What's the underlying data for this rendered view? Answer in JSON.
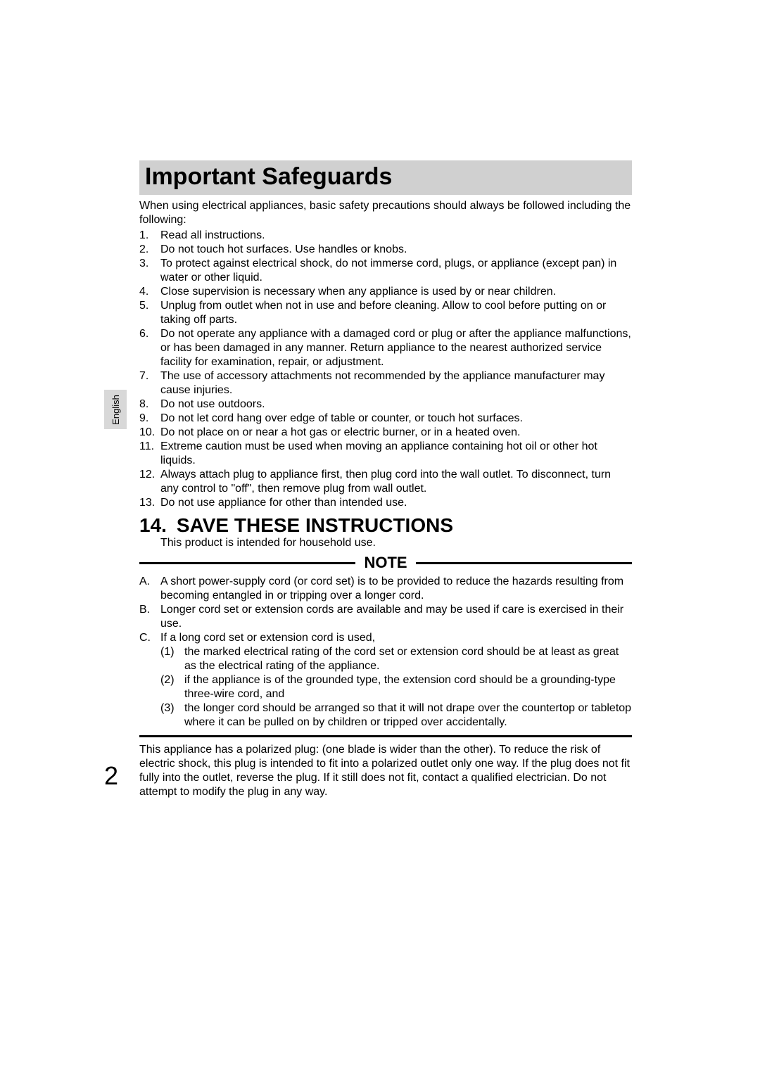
{
  "language_tab": "English",
  "page_number": "2",
  "title": "Important Safeguards",
  "intro": "When using electrical appliances, basic safety precautions should always be followed including the following:",
  "safeguards": [
    "Read all instructions.",
    "Do not touch hot surfaces. Use handles or knobs.",
    "To protect against electrical shock, do not immerse cord, plugs, or appliance (except pan) in water or other liquid.",
    "Close supervision is necessary when any appliance is used by or near children.",
    "Unplug from outlet when not in use and before cleaning. Allow to cool before putting on or taking off parts.",
    "Do not operate any appliance with a damaged cord or plug or after the appliance malfunctions, or has been damaged in any manner. Return appliance to the nearest authorized service facility for examination, repair, or adjustment.",
    "The use of accessory attachments not recommended by the appliance manufacturer may cause injuries.",
    "Do not use outdoors.",
    "Do not let cord hang over edge of table or counter, or touch hot surfaces.",
    "Do not place on or near a hot gas or electric burner, or in a heated oven.",
    "Extreme caution must be used when moving an appliance containing hot oil or other hot liquids.",
    "Always attach plug to appliance first, then plug cord into the wall outlet. To disconnect, turn any control to \"off\", then remove plug from wall outlet.",
    "Do not use appliance for other than intended use."
  ],
  "save_heading": "14. SAVE THESE INSTRUCTIONS",
  "household_line": "This product is intended for household use.",
  "note_label": "NOTE",
  "notes": {
    "A": "A short power-supply cord (or cord set) is to be provided to reduce the hazards resulting from becoming entangled in or tripping over a longer cord.",
    "B": "Longer cord set or extension cords are available and may be used if care is exercised in their use.",
    "C_intro": "If a long cord set or extension cord is used,",
    "C_sub": [
      "the marked electrical rating of the cord set or extension cord should be at least as great as the electrical rating of the appliance.",
      "if the appliance is of the grounded type, the extension cord should be a grounding-type three-wire cord, and",
      "the longer cord should be arranged so that it will not drape over the countertop or tabletop where it can be pulled on by children or tripped over accidentally."
    ]
  },
  "plug_para": "This appliance has a polarized plug: (one blade is wider than the other). To reduce the risk of electric shock, this plug is intended to fit into a polarized outlet only one way. If the plug does not fit fully into the outlet, reverse the plug. If it still does not fit, contact a qualified electrician. Do not attempt to modify the plug in any way."
}
